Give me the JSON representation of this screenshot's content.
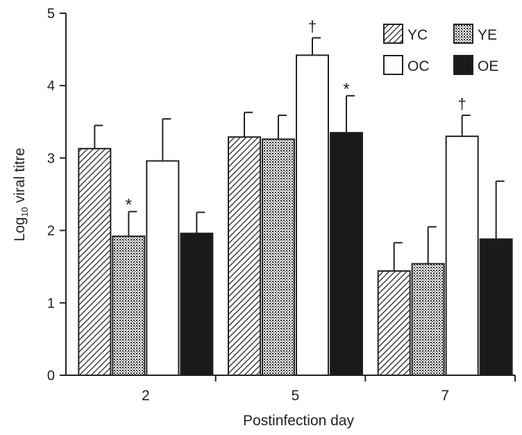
{
  "chart_data": {
    "type": "bar",
    "title": "",
    "xlabel": "Postinfection day",
    "ylabel_main": "Log",
    "ylabel_sub": "10",
    "ylabel_rest": " viral titre",
    "ylim": [
      0,
      5
    ],
    "yticks": [
      "0",
      "1",
      "2",
      "3",
      "4",
      "5"
    ],
    "categories": [
      "2",
      "5",
      "7"
    ],
    "series": [
      {
        "name": "YC",
        "pattern": "hatch",
        "values": [
          3.13,
          3.29,
          1.44
        ],
        "errors": [
          0.32,
          0.34,
          0.39
        ]
      },
      {
        "name": "YE",
        "pattern": "dots",
        "values": [
          1.92,
          3.26,
          1.54
        ],
        "errors": [
          0.34,
          0.33,
          0.51
        ]
      },
      {
        "name": "OC",
        "pattern": "white",
        "values": [
          2.96,
          4.42,
          3.3
        ],
        "errors": [
          0.58,
          0.24,
          0.29
        ]
      },
      {
        "name": "OE",
        "pattern": "black",
        "values": [
          1.96,
          3.35,
          1.88
        ],
        "errors": [
          0.29,
          0.51,
          0.8
        ]
      }
    ],
    "annotations": [
      {
        "text": "*",
        "series": 1,
        "category": 0
      },
      {
        "text": "†",
        "series": 2,
        "category": 1
      },
      {
        "text": "*",
        "series": 3,
        "category": 1
      },
      {
        "text": "†",
        "series": 2,
        "category": 2
      }
    ],
    "legend_position": "top-right",
    "grid": false,
    "colors": {
      "ink": "#222222",
      "fill_black": "#1a1a1a",
      "fill_white": "#ffffff"
    }
  }
}
